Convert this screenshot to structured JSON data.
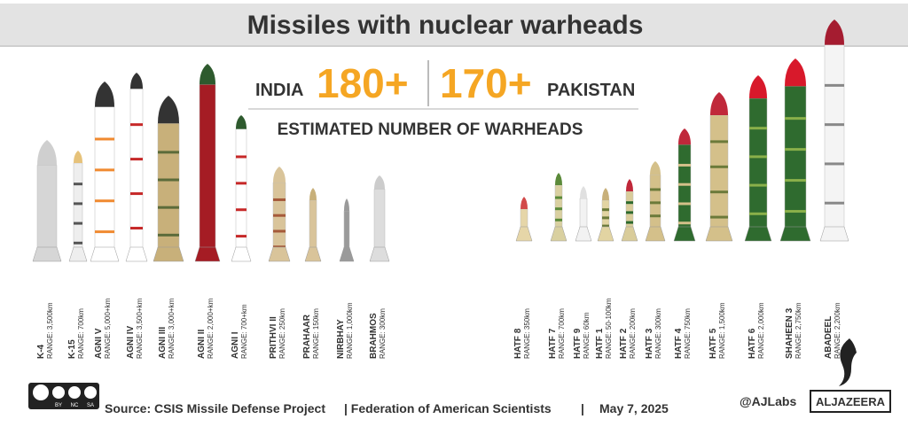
{
  "header": {
    "title": "Missiles with nuclear warheads"
  },
  "summary": {
    "india_label": "INDIA",
    "india_count": "180+",
    "pakistan_count": "170+",
    "pakistan_label": "PAKISTAN",
    "subtitle": "ESTIMATED NUMBER OF WARHEADS"
  },
  "india": [
    {
      "name": "K-4",
      "range": "RANGE: 3,500km"
    },
    {
      "name": "K-15",
      "range": "RANGE: 700km"
    },
    {
      "name": "AGNI V",
      "range": "RANGE: 5,000+km"
    },
    {
      "name": "AGNI IV",
      "range": "RANGE: 3,500+km"
    },
    {
      "name": "AGNI III",
      "range": "RANGE: 3,000+km"
    },
    {
      "name": "AGNI II",
      "range": "RANGE: 2,000+km"
    },
    {
      "name": "AGNI I",
      "range": "RANGE: 700+km"
    },
    {
      "name": "PRITHVI II",
      "range": "RANGE: 250km"
    },
    {
      "name": "PRAHAAR",
      "range": "RANGE: 150km"
    },
    {
      "name": "NIRBHAY",
      "range": "RANGE: 1,000km"
    },
    {
      "name": "BRAHMOS",
      "range": "RANGE: 300km"
    }
  ],
  "pakistan": [
    {
      "name": "HATF 8",
      "range": "RANGE: 350km"
    },
    {
      "name": "HATF 7",
      "range": "RANGE: 700km"
    },
    {
      "name": "HATF 9",
      "range": "RANGE: 60km"
    },
    {
      "name": "HATF 1",
      "range": "RANGE: 50-100km"
    },
    {
      "name": "HATF 2",
      "range": "RANGE: 200km"
    },
    {
      "name": "HATF 3",
      "range": "RANGE: 300km"
    },
    {
      "name": "HATF 4",
      "range": "RANGE: 750km"
    },
    {
      "name": "HATF 5",
      "range": "RANGE: 1,500km"
    },
    {
      "name": "HATF 6",
      "range": "RANGE: 2,000km"
    },
    {
      "name": "SHAHEEN 3",
      "range": "RANGE: 2,750km"
    },
    {
      "name": "ABADEEL",
      "range": "RANGE: 2,200km"
    }
  ],
  "footer": {
    "license": [
      "BY",
      "NC",
      "SA"
    ],
    "source": "Source: CSIS Missile Defense Project",
    "org": "| Federation of American Scientists",
    "separator": "|",
    "date": "May 7, 2025",
    "credit": "@AJLabs",
    "logo": "ALJAZEERA"
  }
}
